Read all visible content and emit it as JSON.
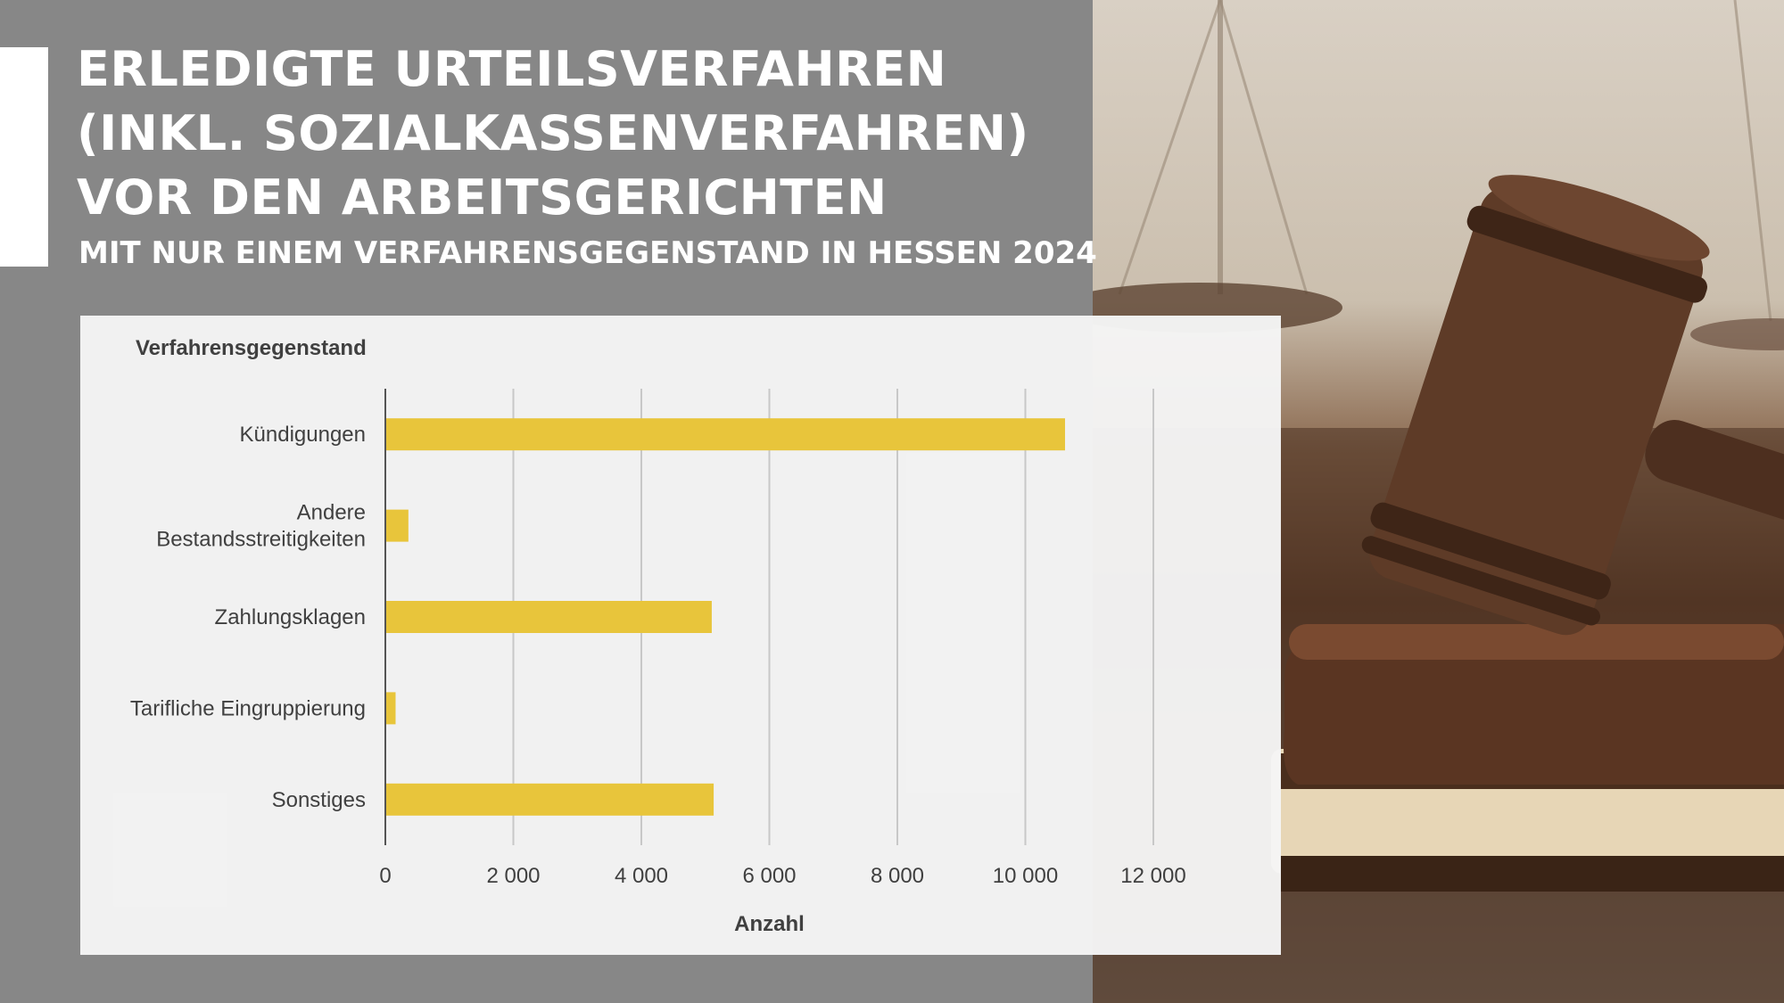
{
  "header": {
    "title": "ERLEDIGTE URTEILSVERFAHREN\n(INKL. SOZIALKASSENVERFAHREN)\nVOR DEN ARBEITSGERICHTEN",
    "subtitle": "MIT NUR EINEM VERFAHRENSGEGENSTAND IN HESSEN 2024"
  },
  "colors": {
    "background": "#878787",
    "panel": "#f4f4f4",
    "bar": "#e8c53b",
    "text": "#404040",
    "grid": "#c8c8c8"
  },
  "chart_data": {
    "type": "bar",
    "orientation": "horizontal",
    "ylabel": "Verfahrensgegenstand",
    "xlabel": "Anzahl",
    "categories": [
      [
        "Kündigungen"
      ],
      [
        "Andere",
        "Bestandsstreitigkeiten"
      ],
      [
        "Zahlungsklagen"
      ],
      [
        "Tarifliche Eingruppierung"
      ],
      [
        "Sonstiges"
      ]
    ],
    "values": [
      10620,
      360,
      5100,
      160,
      5130
    ],
    "xlim": [
      0,
      12000
    ],
    "xticks": [
      0,
      2000,
      4000,
      6000,
      8000,
      10000,
      12000
    ],
    "xtick_labels": [
      "0",
      "2 000",
      "4 000",
      "6 000",
      "8 000",
      "10 000",
      "12 000"
    ],
    "grid": true,
    "legend": "none"
  }
}
